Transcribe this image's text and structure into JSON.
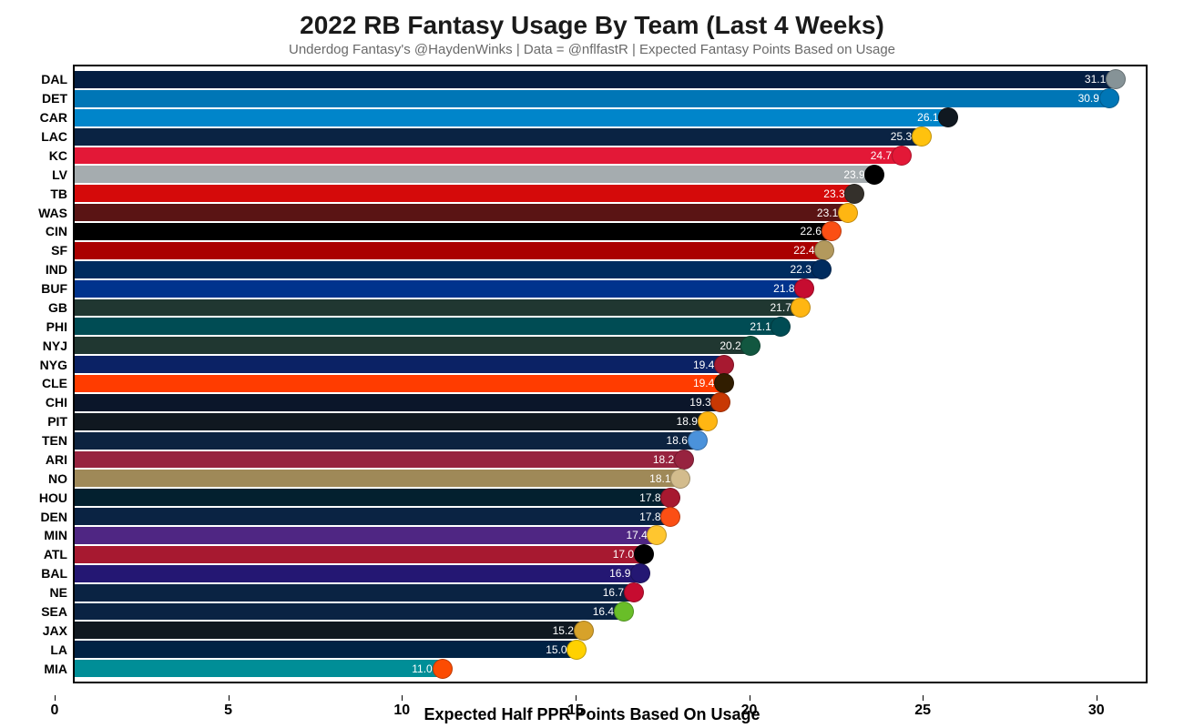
{
  "chart": {
    "type": "bar-horizontal",
    "title": "2022 RB Fantasy Usage By Team (Last 4 Weeks)",
    "title_fontsize": 28,
    "subtitle": "Underdog Fantasy's @HaydenWinks | Data = @nflfastR | Expected Fantasy Points Based on Usage",
    "subtitle_fontsize": 15,
    "subtitle_color": "#6a6a6a",
    "background_color": "#ffffff",
    "border_color": "#000000",
    "x_axis": {
      "label": "Expected Half PPR Points Based On Usage",
      "label_fontsize": 18,
      "min": 0,
      "max": 32,
      "ticks": [
        0,
        5,
        10,
        15,
        20,
        25,
        30
      ],
      "tick_fontsize": 16
    },
    "y_axis": {
      "label_fontsize": 14
    },
    "value_label_fontsize": 12,
    "value_label_color": "#ffffff",
    "logo_size": 22,
    "teams": [
      {
        "abbr": "DAL",
        "value": 31.1,
        "bar_color": "#041e42",
        "logo_bg": "#869397"
      },
      {
        "abbr": "DET",
        "value": 30.9,
        "bar_color": "#0076b6",
        "logo_bg": "#0076b6"
      },
      {
        "abbr": "CAR",
        "value": 26.1,
        "bar_color": "#0085ca",
        "logo_bg": "#101820"
      },
      {
        "abbr": "LAC",
        "value": 25.3,
        "bar_color": "#0a2343",
        "logo_bg": "#ffc20e"
      },
      {
        "abbr": "KC",
        "value": 24.7,
        "bar_color": "#e31837",
        "logo_bg": "#e31837"
      },
      {
        "abbr": "LV",
        "value": 23.9,
        "bar_color": "#a5acaf",
        "logo_bg": "#000000"
      },
      {
        "abbr": "TB",
        "value": 23.3,
        "bar_color": "#d50a0a",
        "logo_bg": "#34302b"
      },
      {
        "abbr": "WAS",
        "value": 23.1,
        "bar_color": "#5a1414",
        "logo_bg": "#ffb612"
      },
      {
        "abbr": "CIN",
        "value": 22.6,
        "bar_color": "#000000",
        "logo_bg": "#fb4f14"
      },
      {
        "abbr": "SF",
        "value": 22.4,
        "bar_color": "#aa0000",
        "logo_bg": "#b3995d"
      },
      {
        "abbr": "IND",
        "value": 22.3,
        "bar_color": "#002c5f",
        "logo_bg": "#002c5f"
      },
      {
        "abbr": "BUF",
        "value": 21.8,
        "bar_color": "#00338d",
        "logo_bg": "#c60c30"
      },
      {
        "abbr": "GB",
        "value": 21.7,
        "bar_color": "#203731",
        "logo_bg": "#ffb612"
      },
      {
        "abbr": "PHI",
        "value": 21.1,
        "bar_color": "#004c54",
        "logo_bg": "#004c54"
      },
      {
        "abbr": "NYJ",
        "value": 20.2,
        "bar_color": "#203731",
        "logo_bg": "#125740"
      },
      {
        "abbr": "NYG",
        "value": 19.4,
        "bar_color": "#0b2265",
        "logo_bg": "#a71930"
      },
      {
        "abbr": "CLE",
        "value": 19.4,
        "bar_color": "#ff3c00",
        "logo_bg": "#311d00"
      },
      {
        "abbr": "CHI",
        "value": 19.3,
        "bar_color": "#0b162a",
        "logo_bg": "#c83803"
      },
      {
        "abbr": "PIT",
        "value": 18.9,
        "bar_color": "#101820",
        "logo_bg": "#ffb612"
      },
      {
        "abbr": "TEN",
        "value": 18.6,
        "bar_color": "#0c2340",
        "logo_bg": "#4b92db"
      },
      {
        "abbr": "ARI",
        "value": 18.2,
        "bar_color": "#97233f",
        "logo_bg": "#97233f"
      },
      {
        "abbr": "NO",
        "value": 18.1,
        "bar_color": "#9f8958",
        "logo_bg": "#d3bc8d"
      },
      {
        "abbr": "HOU",
        "value": 17.8,
        "bar_color": "#03202f",
        "logo_bg": "#a71930"
      },
      {
        "abbr": "DEN",
        "value": 17.8,
        "bar_color": "#0a2343",
        "logo_bg": "#fb4f14"
      },
      {
        "abbr": "MIN",
        "value": 17.4,
        "bar_color": "#4f2683",
        "logo_bg": "#ffc62f"
      },
      {
        "abbr": "ATL",
        "value": 17.0,
        "bar_color": "#a71930",
        "logo_bg": "#000000"
      },
      {
        "abbr": "BAL",
        "value": 16.9,
        "bar_color": "#241773",
        "logo_bg": "#241773"
      },
      {
        "abbr": "NE",
        "value": 16.7,
        "bar_color": "#0a2343",
        "logo_bg": "#c60c30"
      },
      {
        "abbr": "SEA",
        "value": 16.4,
        "bar_color": "#0a2343",
        "logo_bg": "#69be28"
      },
      {
        "abbr": "JAX",
        "value": 15.2,
        "bar_color": "#101820",
        "logo_bg": "#d7a22a"
      },
      {
        "abbr": "LA",
        "value": 15.0,
        "bar_color": "#002244",
        "logo_bg": "#ffd100"
      },
      {
        "abbr": "MIA",
        "value": 11.0,
        "bar_color": "#008e97",
        "logo_bg": "#fc4c02"
      }
    ]
  }
}
